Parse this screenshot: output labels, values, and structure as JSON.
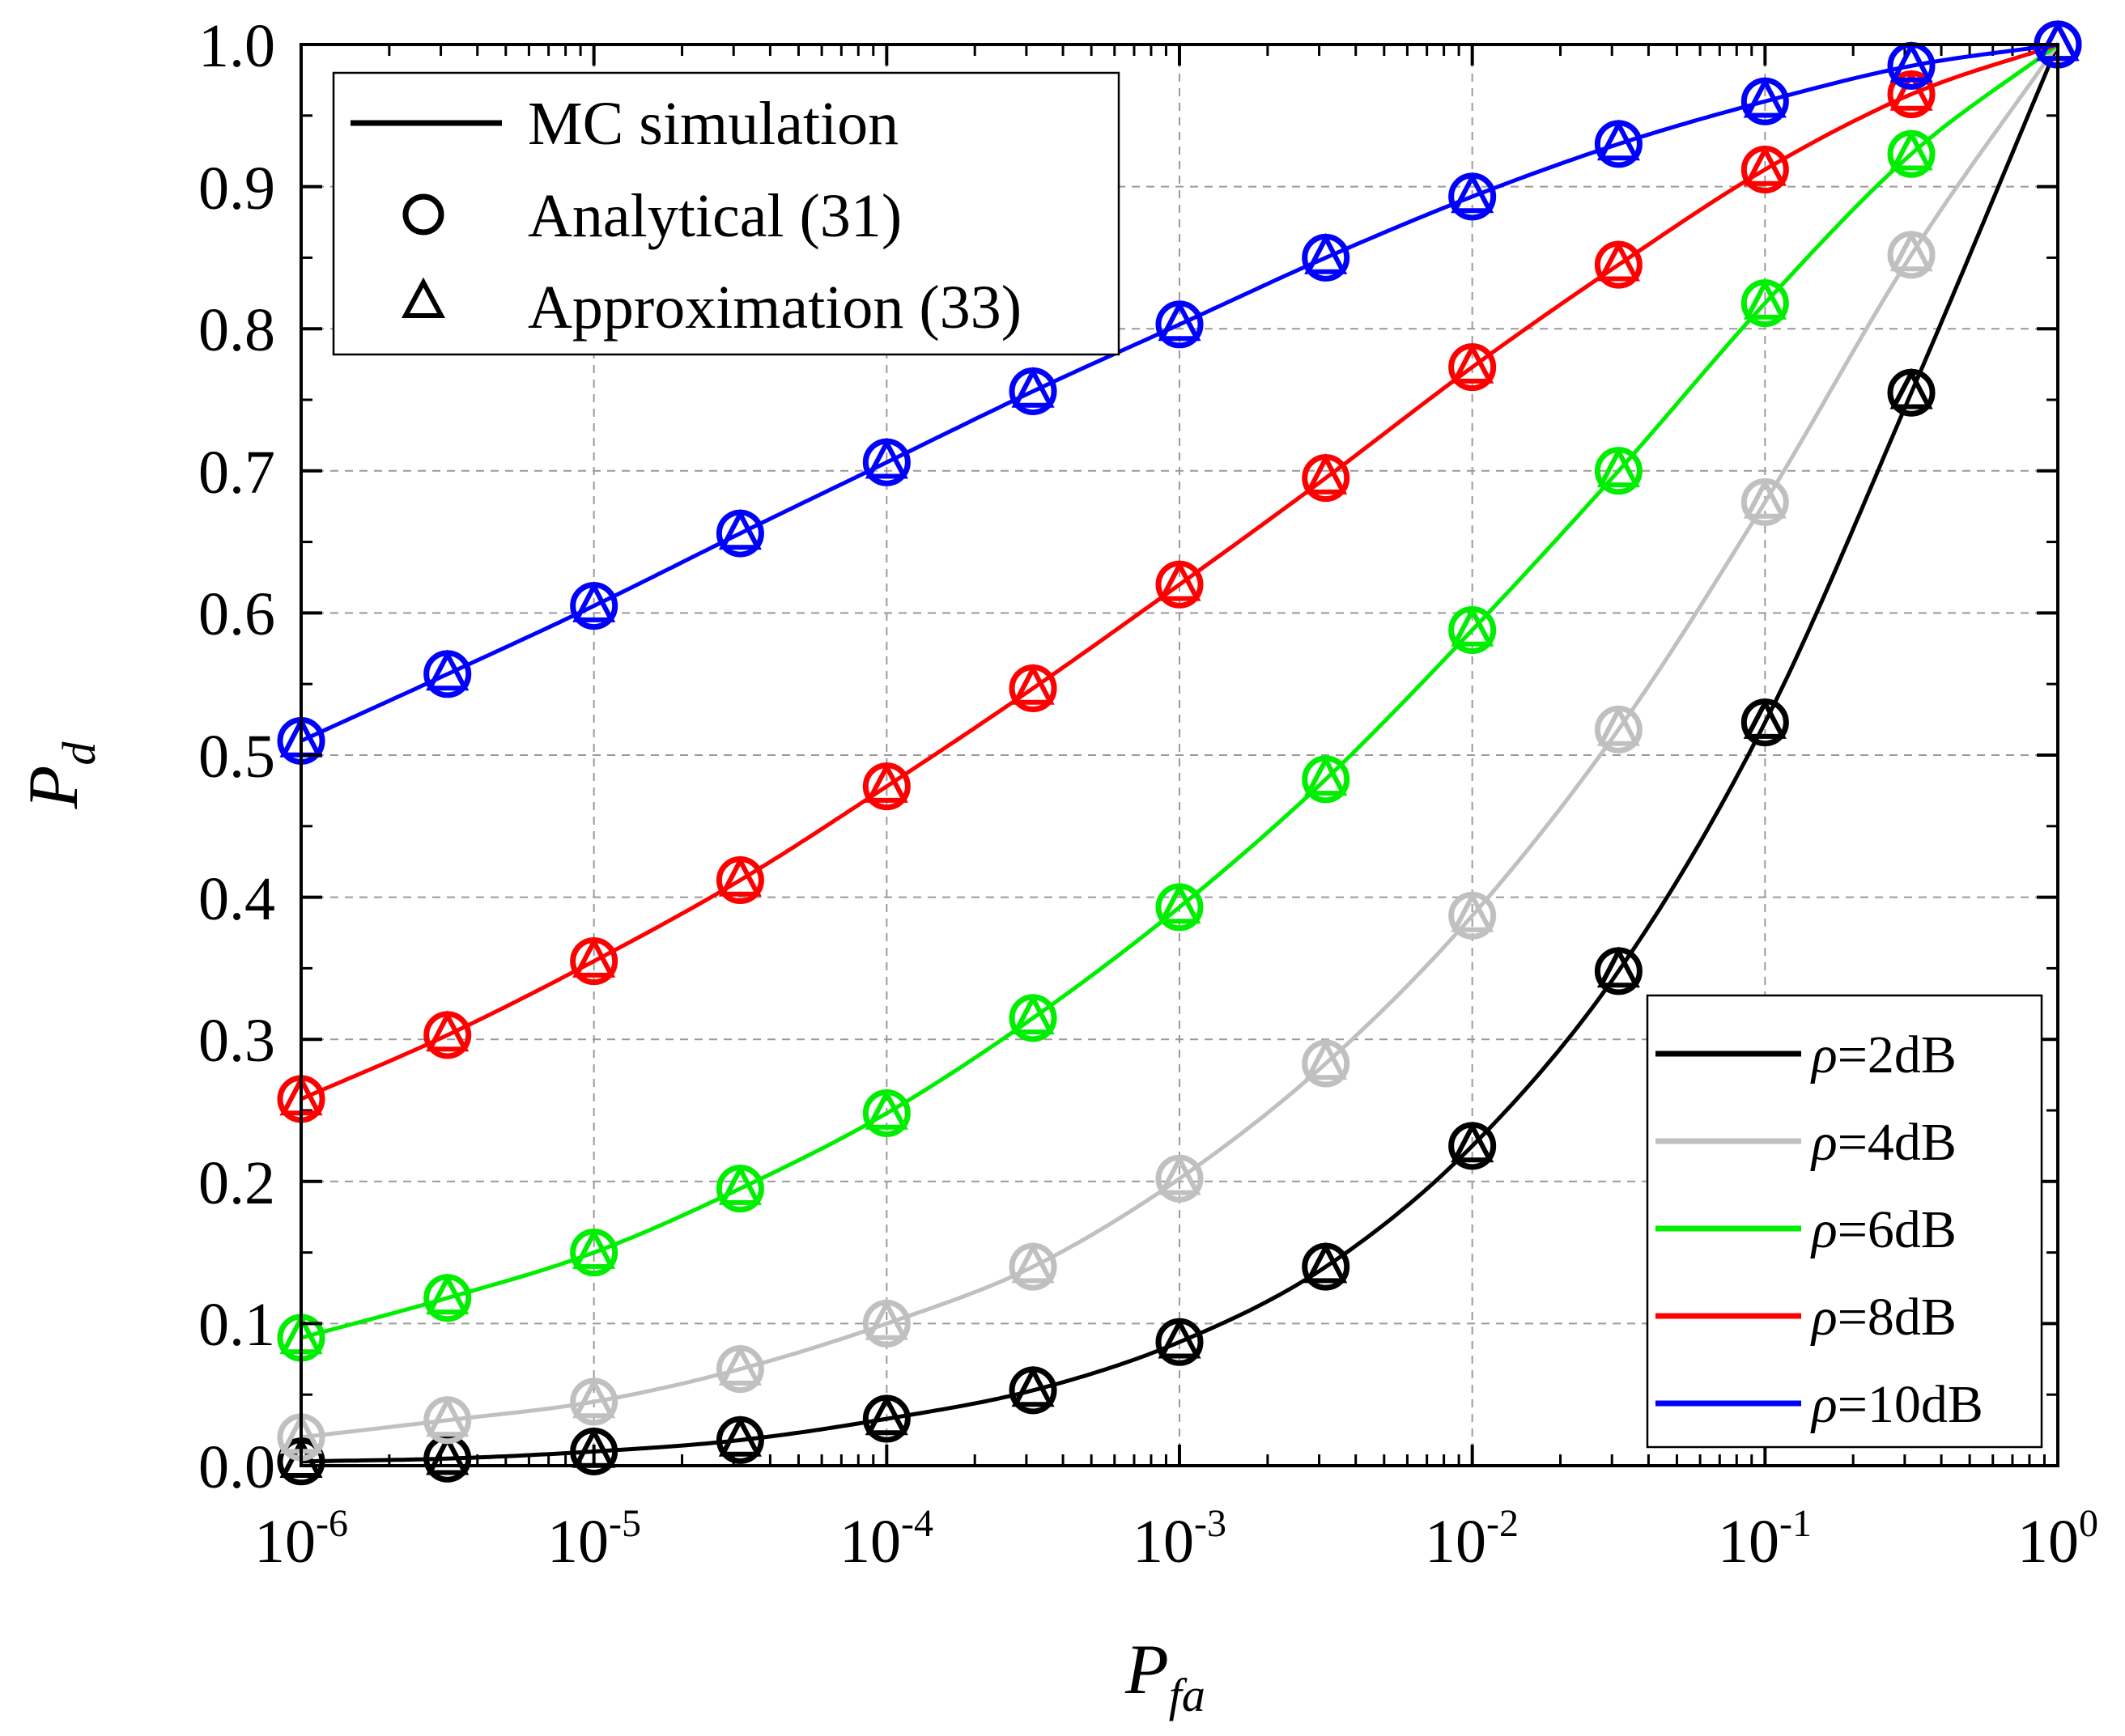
{
  "chart_data": {
    "type": "line",
    "xscale": "log",
    "xlim": [
      1e-06,
      1
    ],
    "ylim": [
      0,
      1
    ],
    "xlabel": {
      "main": "P",
      "sub": "fa"
    },
    "ylabel": {
      "main": "P",
      "sub": "d"
    },
    "xticks": [
      {
        "base": "10",
        "exp": "-6"
      },
      {
        "base": "10",
        "exp": "-5"
      },
      {
        "base": "10",
        "exp": "-4"
      },
      {
        "base": "10",
        "exp": "-3"
      },
      {
        "base": "10",
        "exp": "-2"
      },
      {
        "base": "10",
        "exp": "-1"
      },
      {
        "base": "10",
        "exp": "0"
      }
    ],
    "yticks": [
      "0.0",
      "0.1",
      "0.2",
      "0.3",
      "0.4",
      "0.5",
      "0.6",
      "0.7",
      "0.8",
      "0.9",
      "1.0"
    ],
    "grid": true,
    "legend_markers": {
      "position": "top-left",
      "entries": [
        {
          "label": "MC simulation",
          "marker": "line"
        },
        {
          "label": "Analytical (31)",
          "marker": "circle"
        },
        {
          "label": "Approximation (33)",
          "marker": "triangle"
        }
      ]
    },
    "legend_series": {
      "position": "bottom-right",
      "symbol": "ρ"
    },
    "marker_x": [
      1e-06,
      3.16e-06,
      1e-05,
      3.16e-05,
      0.0001,
      0.000316,
      0.001,
      0.00316,
      0.01,
      0.0316,
      0.1,
      0.316,
      1
    ],
    "series": [
      {
        "name": "=2dB",
        "color": "#000000",
        "values": [
          0.003,
          0.005,
          0.01,
          0.018,
          0.033,
          0.053,
          0.087,
          0.14,
          0.225,
          0.348,
          0.523,
          0.755,
          1.0
        ]
      },
      {
        "name": "=4dB",
        "color": "#c0c0c0",
        "values": [
          0.02,
          0.032,
          0.045,
          0.068,
          0.1,
          0.14,
          0.202,
          0.283,
          0.387,
          0.518,
          0.678,
          0.852,
          1.0
        ]
      },
      {
        "name": "=6dB",
        "color": "#00ee00",
        "values": [
          0.09,
          0.118,
          0.15,
          0.195,
          0.248,
          0.315,
          0.393,
          0.483,
          0.588,
          0.7,
          0.818,
          0.923,
          1.0
        ]
      },
      {
        "name": "=8dB",
        "color": "#ff0000",
        "values": [
          0.258,
          0.303,
          0.355,
          0.412,
          0.478,
          0.547,
          0.62,
          0.695,
          0.773,
          0.845,
          0.912,
          0.965,
          1.0
        ]
      },
      {
        "name": "=10dB",
        "color": "#0000ff",
        "values": [
          0.51,
          0.557,
          0.605,
          0.656,
          0.706,
          0.756,
          0.803,
          0.85,
          0.893,
          0.93,
          0.96,
          0.985,
          1.0
        ]
      }
    ]
  }
}
